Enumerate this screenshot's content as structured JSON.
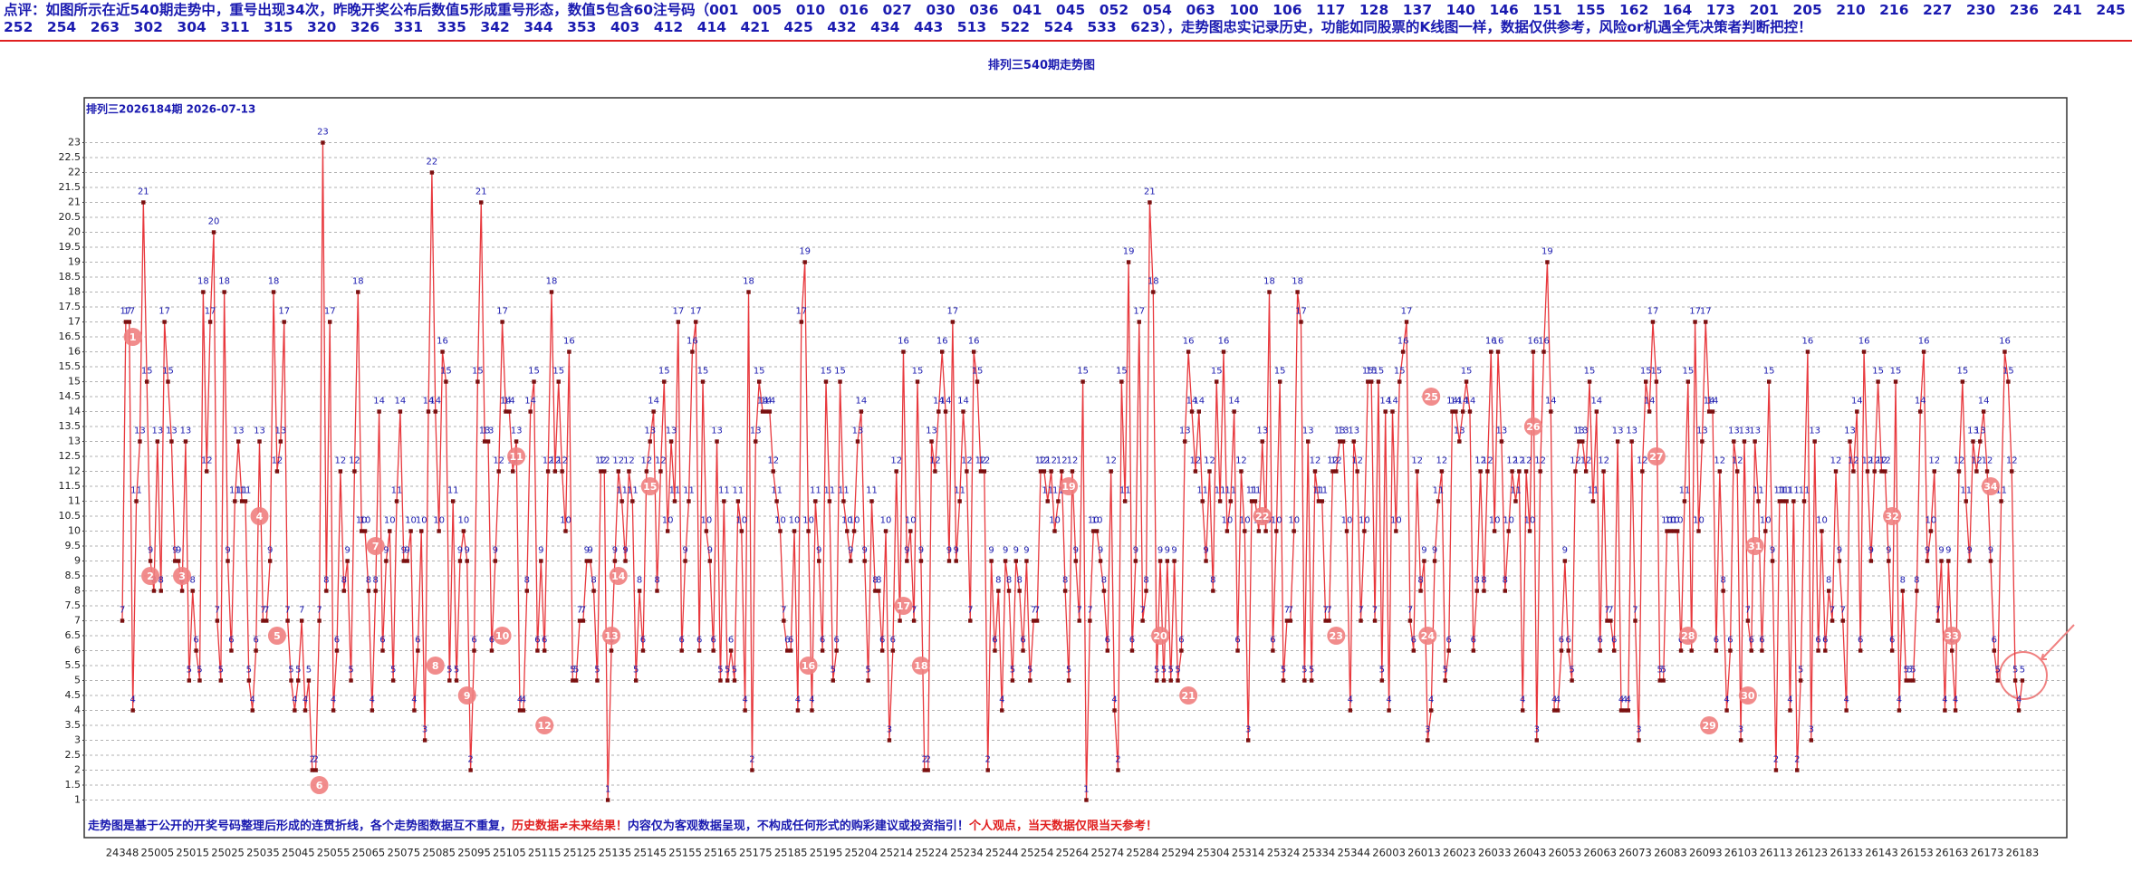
{
  "header": {
    "commentary": "点评：如图所示在近540期走势中，重号出现34次，昨晚开奖公布后数值5形成重号形态，数值5包含60注号码（001　005　010　016　027　030　036　041　045　052　054　063　100　106　117　128　137　140　146　151　155　162　164　173　201　205　210　216　227　230　236　241　245　252　254　263　302　304　311　315　320　326　331　335　342　344　353　403　412　414　421　425　432　434　443　513　522　524　533　623），走势图忠实记录历史，功能如同股票的K线图一样，数据仅供参考，风险or机遇全凭决策者判断把控！"
  },
  "chart_data": {
    "type": "line",
    "title": "排列三540期走势图",
    "subtitle": "排列三2026184期 2026-07-13",
    "note": [
      {
        "text": "走势图是基于公开的开奖号码整理后形成的连贯折线，各个走势图数据互不重复，",
        "color": "#1a1ab0"
      },
      {
        "text": "历史数据≠未来结果！",
        "color": "#e02020"
      },
      {
        "text": "内容仅为客观数据呈现，不构成任何形式的购彩建议或投资指引！",
        "color": "#1a1ab0"
      },
      {
        "text": "个人观点，当天数据仅限当天参考！",
        "color": "#e02020"
      }
    ],
    "line_color": "#e8383d",
    "point_color": "#7a1010",
    "label_color": "#1a1ab0",
    "marker_color": "#f08080",
    "grid": true,
    "ylim": [
      1,
      23
    ],
    "yticks": [
      1,
      1.5,
      2,
      2.5,
      3,
      3.5,
      4,
      4.5,
      5,
      5.5,
      6,
      6.5,
      7,
      7.5,
      8,
      8.5,
      9,
      9.5,
      10,
      10.5,
      11,
      11.5,
      12,
      12.5,
      13,
      13.5,
      14,
      14.5,
      15,
      15.5,
      16,
      16.5,
      17,
      17.5,
      18,
      18.5,
      19,
      19.5,
      20,
      20.5,
      21,
      21.5,
      22,
      22.5,
      23
    ],
    "categories": [
      "24348",
      null,
      null,
      null,
      null,
      null,
      null,
      null,
      null,
      null,
      "25005",
      null,
      null,
      null,
      null,
      null,
      null,
      null,
      null,
      null,
      "25015",
      null,
      null,
      null,
      null,
      null,
      null,
      null,
      null,
      null,
      "25025",
      null,
      null,
      null,
      null,
      null,
      null,
      null,
      null,
      null,
      "25035",
      null,
      null,
      null,
      null,
      null,
      null,
      null,
      null,
      null,
      "25045",
      null,
      null,
      null,
      null,
      null,
      null,
      null,
      null,
      null,
      "25055",
      null,
      null,
      null,
      null,
      null,
      null,
      null,
      null,
      null,
      "25065",
      null,
      null,
      null,
      null,
      null,
      null,
      null,
      null,
      null,
      "25075",
      null,
      null,
      null,
      null,
      null,
      null,
      null,
      null,
      null,
      "25085",
      null,
      null,
      null,
      null,
      null,
      null,
      null,
      null,
      null,
      "25095",
      null,
      null,
      null,
      null,
      null,
      null,
      null,
      null,
      null,
      "25105",
      null,
      null,
      null,
      null,
      null,
      null,
      null,
      null,
      null,
      "25115",
      null,
      null,
      null,
      null,
      null,
      null,
      null,
      null,
      null,
      "25125",
      null,
      null,
      null,
      null,
      null,
      null,
      null,
      null,
      null,
      "25135",
      null,
      null,
      null,
      null,
      null,
      null,
      null,
      null,
      null,
      "25145",
      null,
      null,
      null,
      null,
      null,
      null,
      null,
      null,
      null,
      "25155",
      null,
      null,
      null,
      null,
      null,
      null,
      null,
      null,
      null,
      "25165",
      null,
      null,
      null,
      null,
      null,
      null,
      null,
      null,
      null,
      "25175",
      null,
      null,
      null,
      null,
      null,
      null,
      null,
      null,
      null,
      "25185",
      null,
      null,
      null,
      null,
      null,
      null,
      null,
      null,
      null,
      "25195",
      null,
      null,
      null,
      null,
      null,
      null,
      null,
      null,
      null,
      "25204",
      null,
      null,
      null,
      null,
      null,
      null,
      null,
      null,
      null,
      "25214",
      null,
      null,
      null,
      null,
      null,
      null,
      null,
      null,
      null,
      "25224",
      null,
      null,
      null,
      null,
      null,
      null,
      null,
      null,
      null,
      "25234",
      null,
      null,
      null,
      null,
      null,
      null,
      null,
      null,
      null,
      "25244",
      null,
      null,
      null,
      null,
      null,
      null,
      null,
      null,
      null,
      "25254",
      null,
      null,
      null,
      null,
      null,
      null,
      null,
      null,
      null,
      "25264",
      null,
      null,
      null,
      null,
      null,
      null,
      null,
      null,
      null,
      "25274",
      null,
      null,
      null,
      null,
      null,
      null,
      null,
      null,
      null,
      "25284",
      null,
      null,
      null,
      null,
      null,
      null,
      null,
      null,
      null,
      "25294",
      null,
      null,
      null,
      null,
      null,
      null,
      null,
      null,
      null,
      "25304",
      null,
      null,
      null,
      null,
      null,
      null,
      null,
      null,
      null,
      "25314",
      null,
      null,
      null,
      null,
      null,
      null,
      null,
      null,
      null,
      "25324",
      null,
      null,
      null,
      null,
      null,
      null,
      null,
      null,
      null,
      "25334",
      null,
      null,
      null,
      null,
      null,
      null,
      null,
      null,
      null,
      "25344",
      null,
      null,
      null,
      null,
      null,
      null,
      null,
      null,
      null,
      "26003",
      null,
      null,
      null,
      null,
      null,
      null,
      null,
      null,
      null,
      "26013",
      null,
      null,
      null,
      null,
      null,
      null,
      null,
      null,
      null,
      "26023",
      null,
      null,
      null,
      null,
      null,
      null,
      null,
      null,
      null,
      "26033",
      null,
      null,
      null,
      null,
      null,
      null,
      null,
      null,
      null,
      "26043",
      null,
      null,
      null,
      null,
      null,
      null,
      null,
      null,
      null,
      "26053",
      null,
      null,
      null,
      null,
      null,
      null,
      null,
      null,
      null,
      "26063",
      null,
      null,
      null,
      null,
      null,
      null,
      null,
      null,
      null,
      "26073",
      null,
      null,
      null,
      null,
      null,
      null,
      null,
      null,
      null,
      "26083",
      null,
      null,
      null,
      null,
      null,
      null,
      null,
      null,
      null,
      "26093",
      null,
      null,
      null,
      null,
      null,
      null,
      null,
      null,
      null,
      "26103",
      null,
      null,
      null,
      null,
      null,
      null,
      null,
      null,
      null,
      "26113",
      null,
      null,
      null,
      null,
      null,
      null,
      null,
      null,
      null,
      "26123",
      null,
      null,
      null,
      null,
      null,
      null,
      null,
      null,
      null,
      "26133",
      null,
      null,
      null,
      null,
      null,
      null,
      null,
      null,
      null,
      "26143",
      null,
      null,
      null,
      null,
      null,
      null,
      null,
      null,
      null,
      "26153",
      null,
      null,
      null,
      null,
      null,
      null,
      null,
      null,
      null,
      "26163",
      null,
      null,
      null,
      null,
      null,
      null,
      null,
      null,
      null,
      "26173",
      null,
      null,
      null,
      null,
      null,
      null,
      null,
      null,
      null,
      "26183"
    ],
    "values": [
      7,
      17,
      17,
      4,
      11,
      13,
      21,
      15,
      9,
      8,
      13,
      8,
      17,
      15,
      13,
      9,
      9,
      8,
      13,
      5,
      8,
      6,
      5,
      18,
      12,
      17,
      20,
      7,
      5,
      18,
      9,
      6,
      11,
      13,
      11,
      11,
      5,
      4,
      6,
      13,
      7,
      7,
      9,
      18,
      12,
      13,
      17,
      7,
      5,
      4,
      5,
      7,
      4,
      5,
      2,
      2,
      7,
      23,
      8,
      17,
      4,
      6,
      12,
      8,
      9,
      5,
      12,
      18,
      10,
      10,
      8,
      4,
      8,
      14,
      6,
      9,
      10,
      5,
      11,
      14,
      9,
      9,
      10,
      4,
      6,
      10,
      3,
      14,
      22,
      14,
      10,
      16,
      15,
      5,
      11,
      5,
      9,
      10,
      9,
      2,
      6,
      15,
      21,
      13,
      13,
      6,
      9,
      12,
      17,
      14,
      14,
      12,
      13,
      4,
      4,
      8,
      14,
      15,
      6,
      9,
      6,
      12,
      18,
      12,
      15,
      12,
      10,
      16,
      5,
      5,
      7,
      7,
      9,
      9,
      8,
      5,
      12,
      12,
      1,
      6,
      9,
      12,
      11,
      9,
      12,
      11,
      5,
      8,
      6,
      12,
      13,
      14,
      8,
      12,
      15,
      10,
      13,
      11,
      17,
      6,
      9,
      11,
      16,
      17,
      6,
      15,
      10,
      9,
      6,
      13,
      5,
      11,
      5,
      6,
      5,
      11,
      10,
      4,
      18,
      2,
      13,
      15,
      14,
      14,
      14,
      12,
      11,
      10,
      7,
      6,
      6,
      10,
      4,
      17,
      19,
      10,
      4,
      11,
      9,
      6,
      15,
      11,
      5,
      6,
      15,
      11,
      10,
      9,
      10,
      13,
      14,
      9,
      5,
      11,
      8,
      8,
      6,
      10,
      3,
      6,
      12,
      7,
      16,
      9,
      10,
      7,
      15,
      9,
      2,
      2,
      13,
      12,
      14,
      16,
      14,
      9,
      17,
      9,
      11,
      14,
      12,
      7,
      16,
      15,
      12,
      12,
      2,
      9,
      6,
      8,
      4,
      9,
      8,
      5,
      9,
      8,
      6,
      9,
      5,
      7,
      7,
      12,
      12,
      11,
      12,
      10,
      11,
      12,
      8,
      5,
      12,
      9,
      7,
      15,
      1,
      7,
      10,
      10,
      9,
      8,
      6,
      12,
      4,
      2,
      15,
      11,
      19,
      6,
      9,
      17,
      7,
      8,
      21,
      18,
      5,
      9,
      5,
      9,
      5,
      9,
      5,
      6,
      13,
      16,
      14,
      12,
      14,
      11,
      9,
      12,
      8,
      15,
      11,
      16,
      10,
      11,
      14,
      6,
      12,
      10,
      3,
      11,
      11,
      10,
      13,
      10,
      18,
      6,
      10,
      15,
      5,
      7,
      7,
      10,
      18,
      17,
      5,
      13,
      5,
      12,
      11,
      11,
      7,
      7,
      12,
      12,
      13,
      13,
      10,
      4,
      13,
      12,
      7,
      10,
      15,
      15,
      7,
      15,
      5,
      14,
      4,
      14,
      10,
      15,
      16,
      17,
      7,
      6,
      12,
      8,
      9,
      3,
      4,
      9,
      11,
      12,
      5,
      6,
      14,
      14,
      13,
      14,
      15,
      14,
      6,
      8,
      12,
      8,
      12,
      16,
      10,
      16,
      13,
      8,
      10,
      12,
      11,
      12,
      4,
      12,
      10,
      16,
      3,
      12,
      16,
      19,
      14,
      4,
      4,
      6,
      9,
      6,
      5,
      12,
      13,
      13,
      12,
      15,
      11,
      14,
      6,
      12,
      7,
      7,
      6,
      13,
      4,
      4,
      4,
      13,
      7,
      3,
      12,
      15,
      14,
      17,
      15,
      5,
      5,
      10,
      10,
      10,
      10,
      6,
      11,
      15,
      6,
      17,
      10,
      13,
      17,
      14,
      14,
      6,
      12,
      8,
      4,
      6,
      13,
      12,
      3,
      13,
      7,
      6,
      13,
      11,
      6,
      10,
      15,
      9,
      2,
      11,
      11,
      11,
      4,
      11,
      2,
      5,
      11,
      16,
      3,
      13,
      6,
      10,
      6,
      8,
      7,
      12,
      9,
      7,
      4,
      13,
      12,
      14,
      6,
      16,
      12,
      9,
      12,
      15,
      12,
      12,
      9,
      6,
      15,
      4,
      8,
      5,
      5,
      5,
      8,
      14,
      16,
      9,
      10,
      12,
      7,
      9,
      4,
      9,
      6,
      4,
      12,
      15,
      11,
      9,
      13,
      12,
      13,
      14,
      12,
      9,
      6,
      5,
      11,
      16,
      15,
      12,
      5,
      4,
      5
    ],
    "repeat_markers": [
      {
        "x": 3,
        "y": 16.5,
        "label": "1"
      },
      {
        "x": 8,
        "y": 8.5,
        "label": "2"
      },
      {
        "x": 17,
        "y": 8.5,
        "label": "3"
      },
      {
        "x": 39,
        "y": 10.5,
        "label": "4"
      },
      {
        "x": 44,
        "y": 6.5,
        "label": "5"
      },
      {
        "x": 56,
        "y": 1.5,
        "label": "6"
      },
      {
        "x": 72,
        "y": 9.5,
        "label": "7"
      },
      {
        "x": 89,
        "y": 5.5,
        "label": "8"
      },
      {
        "x": 98,
        "y": 4.5,
        "label": "9"
      },
      {
        "x": 108,
        "y": 6.5,
        "label": "10"
      },
      {
        "x": 112,
        "y": 12.5,
        "label": "11"
      },
      {
        "x": 120,
        "y": 3.5,
        "label": "12"
      },
      {
        "x": 139,
        "y": 6.5,
        "label": "13"
      },
      {
        "x": 141,
        "y": 8.5,
        "label": "14"
      },
      {
        "x": 150,
        "y": 11.5,
        "label": "15"
      },
      {
        "x": 195,
        "y": 5.5,
        "label": "16"
      },
      {
        "x": 222,
        "y": 7.5,
        "label": "17"
      },
      {
        "x": 227,
        "y": 5.5,
        "label": "18"
      },
      {
        "x": 269,
        "y": 11.5,
        "label": "19"
      },
      {
        "x": 295,
        "y": 6.5,
        "label": "20"
      },
      {
        "x": 303,
        "y": 4.5,
        "label": "21"
      },
      {
        "x": 324,
        "y": 10.5,
        "label": "22"
      },
      {
        "x": 345,
        "y": 6.5,
        "label": "23"
      },
      {
        "x": 371,
        "y": 6.5,
        "label": "24"
      },
      {
        "x": 372,
        "y": 14.5,
        "label": "25"
      },
      {
        "x": 401,
        "y": 13.5,
        "label": "26"
      },
      {
        "x": 436,
        "y": 12.5,
        "label": "27"
      },
      {
        "x": 445,
        "y": 6.5,
        "label": "28"
      },
      {
        "x": 451,
        "y": 3.5,
        "label": "29"
      },
      {
        "x": 462,
        "y": 4.5,
        "label": "30"
      },
      {
        "x": 464,
        "y": 9.5,
        "label": "31"
      },
      {
        "x": 503,
        "y": 10.5,
        "label": "32"
      },
      {
        "x": 520,
        "y": 6.5,
        "label": "33"
      },
      {
        "x": 531,
        "y": 11.5,
        "label": "34"
      }
    ]
  }
}
